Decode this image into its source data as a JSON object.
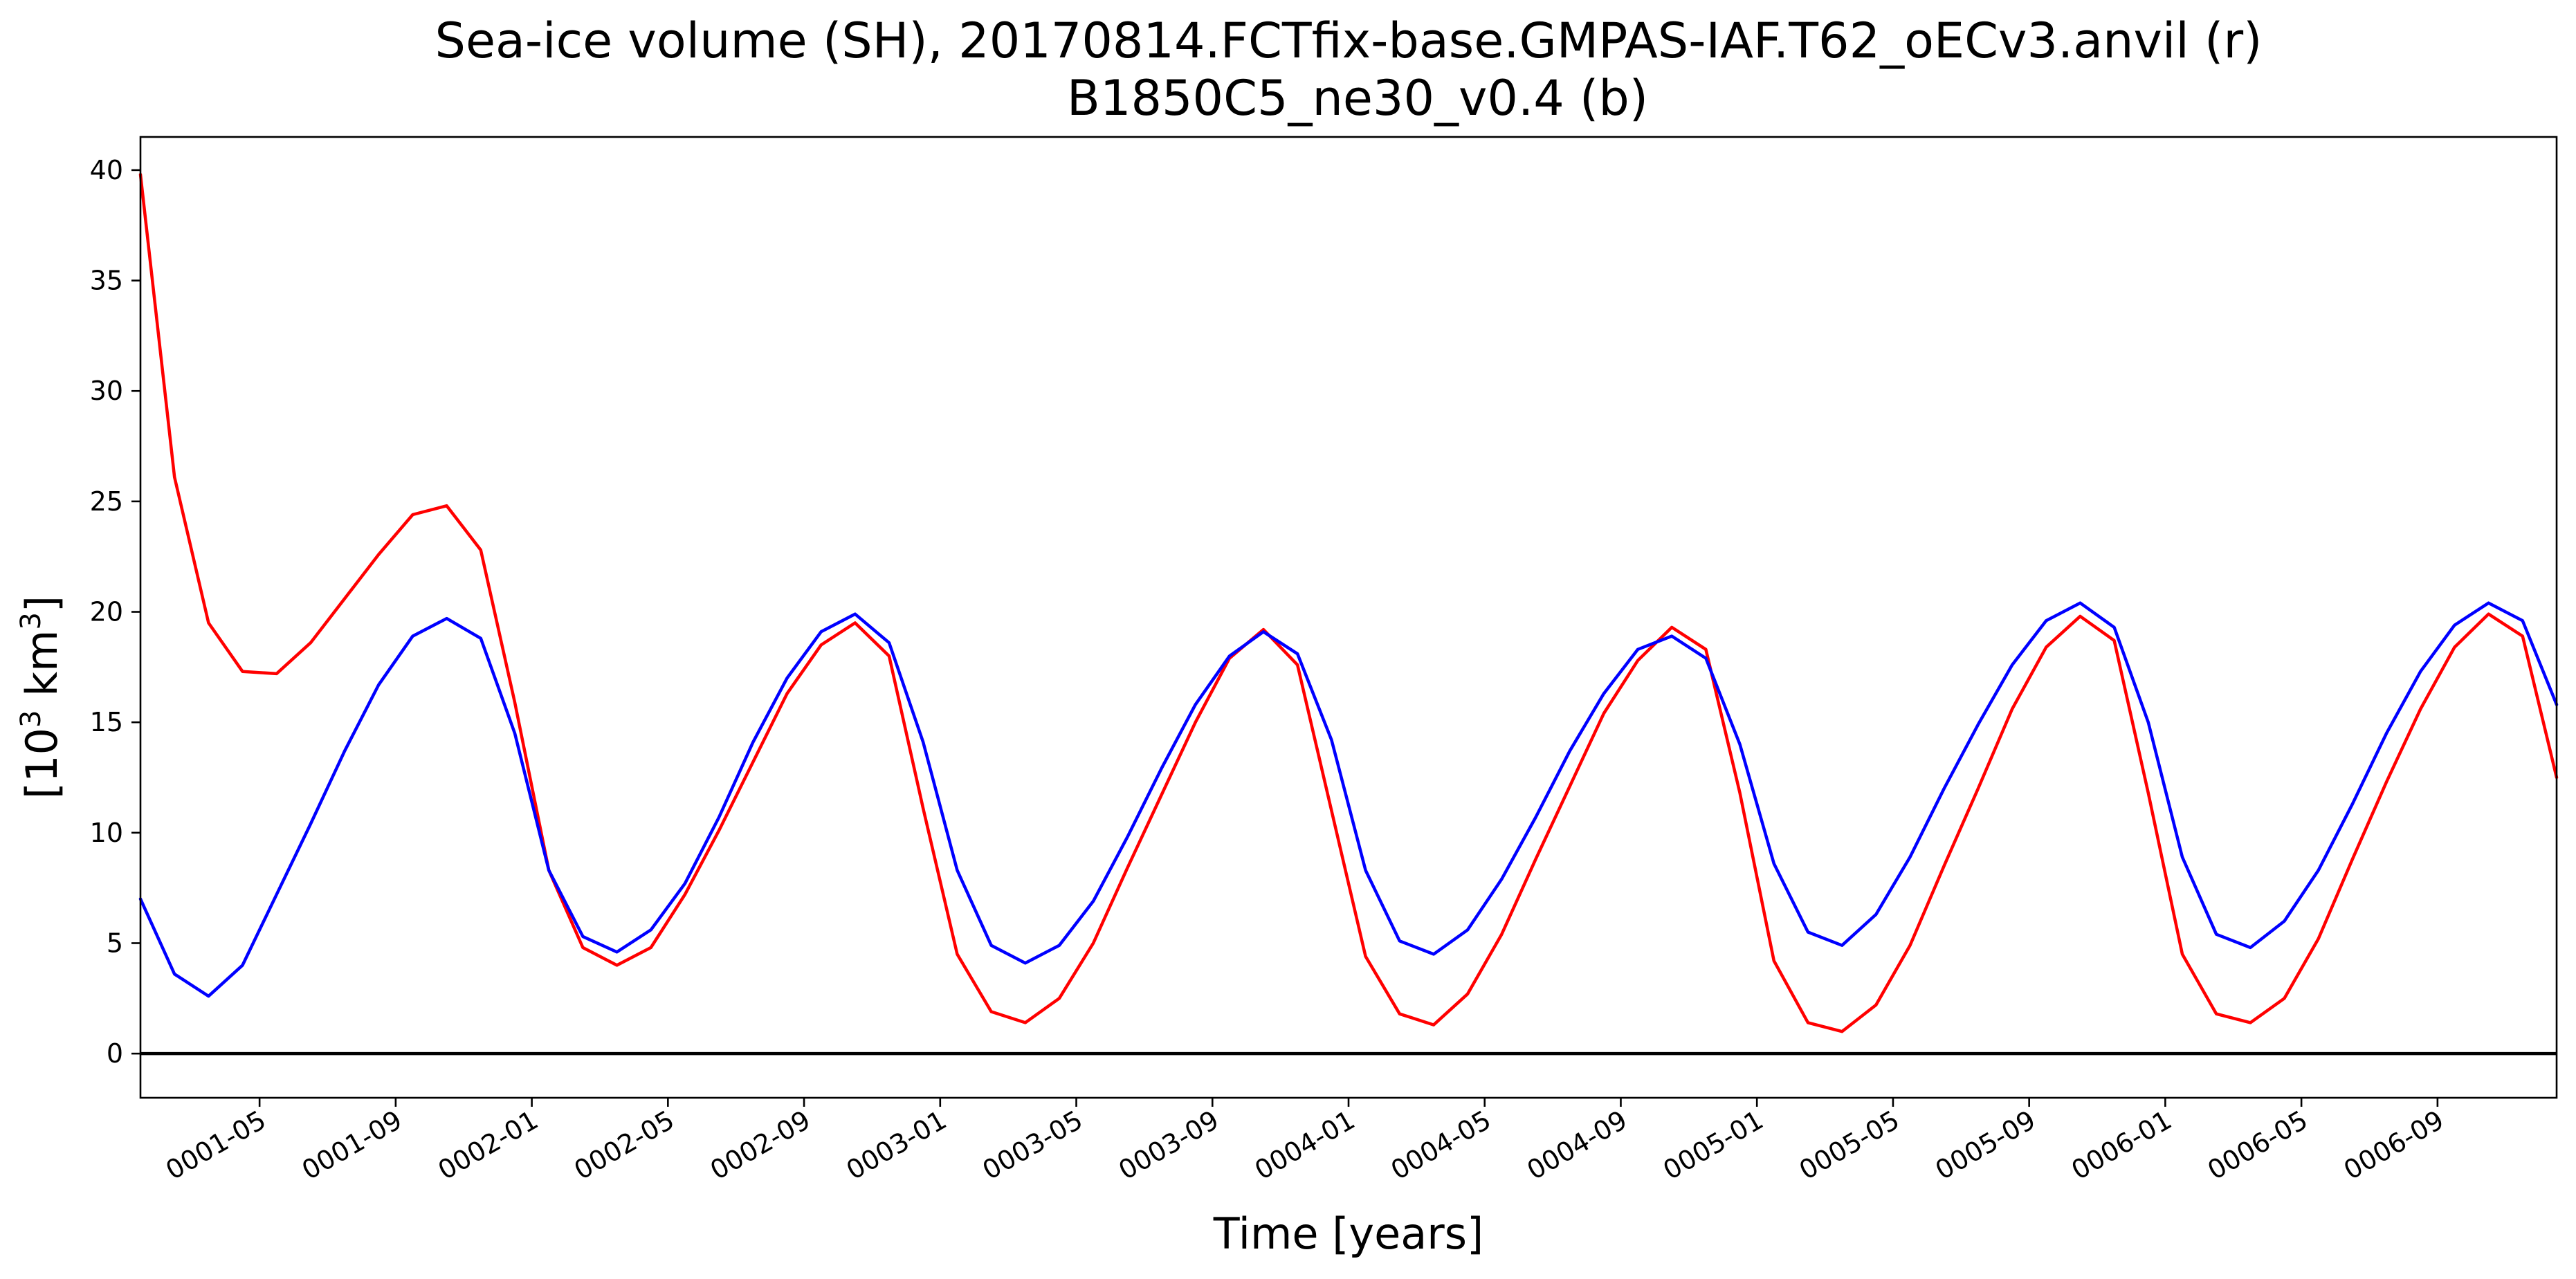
{
  "chart_data": {
    "type": "line",
    "title_line1": "Sea-ice volume (SH), 20170814.FCTfix-base.GMPAS-IAF.T62_oECv3.anvil (r)",
    "title_line2": "B1850C5_ne30_v0.4 (b)",
    "xlabel": "Time [years]",
    "ylabel_base": "[10",
    "ylabel_exp1": "3",
    "ylabel_mid": " km",
    "ylabel_exp2": "3",
    "ylabel_end": "]",
    "x_units": "months since 0001-01",
    "xlim": [
      0.5,
      71.5
    ],
    "ylim": [
      -2,
      41.5
    ],
    "yticks": [
      0,
      5,
      10,
      15,
      20,
      25,
      30,
      35,
      40
    ],
    "xticks": [
      {
        "x": 4,
        "label": "0001-05"
      },
      {
        "x": 8,
        "label": "0001-09"
      },
      {
        "x": 12,
        "label": "0002-01"
      },
      {
        "x": 16,
        "label": "0002-05"
      },
      {
        "x": 20,
        "label": "0002-09"
      },
      {
        "x": 24,
        "label": "0003-01"
      },
      {
        "x": 28,
        "label": "0003-05"
      },
      {
        "x": 32,
        "label": "0003-09"
      },
      {
        "x": 36,
        "label": "0004-01"
      },
      {
        "x": 40,
        "label": "0004-05"
      },
      {
        "x": 44,
        "label": "0004-09"
      },
      {
        "x": 48,
        "label": "0005-01"
      },
      {
        "x": 52,
        "label": "0005-05"
      },
      {
        "x": 56,
        "label": "0005-09"
      },
      {
        "x": 60,
        "label": "0006-01"
      },
      {
        "x": 64,
        "label": "0006-05"
      },
      {
        "x": 68,
        "label": "0006-09"
      }
    ],
    "grid": false,
    "zero_line": true,
    "series": [
      {
        "color": "#ff0000",
        "x_start": 0.5,
        "values": [
          39.8,
          26.1,
          19.5,
          17.3,
          17.2,
          18.6,
          20.6,
          22.6,
          24.4,
          24.8,
          22.8,
          15.9,
          8.3,
          4.8,
          4.0,
          4.8,
          7.2,
          10.1,
          13.2,
          16.3,
          18.5,
          19.5,
          18.0,
          11.1,
          4.5,
          1.9,
          1.4,
          2.5,
          5.0,
          8.4,
          11.7,
          15.0,
          17.9,
          19.2,
          17.6,
          11.0,
          4.4,
          1.8,
          1.3,
          2.7,
          5.4,
          8.8,
          12.1,
          15.4,
          17.8,
          19.3,
          18.3,
          11.8,
          4.2,
          1.4,
          1.0,
          2.2,
          4.9,
          8.5,
          12.0,
          15.6,
          18.4,
          19.8,
          18.7,
          11.8,
          4.5,
          1.8,
          1.4,
          2.5,
          5.2,
          8.8,
          12.3,
          15.6,
          18.4,
          19.9,
          18.9,
          12.5
        ]
      },
      {
        "color": "#0000ff",
        "x_start": 0.5,
        "values": [
          7.0,
          3.6,
          2.6,
          4.0,
          7.2,
          10.4,
          13.7,
          16.7,
          18.9,
          19.7,
          18.8,
          14.5,
          8.3,
          5.3,
          4.6,
          5.6,
          7.7,
          10.7,
          14.1,
          17.0,
          19.1,
          19.9,
          18.6,
          14.1,
          8.3,
          4.9,
          4.1,
          4.9,
          6.9,
          9.8,
          12.9,
          15.8,
          18.0,
          19.1,
          18.1,
          14.2,
          8.3,
          5.1,
          4.5,
          5.6,
          7.9,
          10.7,
          13.7,
          16.3,
          18.3,
          18.9,
          17.9,
          14.0,
          8.6,
          5.5,
          4.9,
          6.3,
          8.9,
          12.0,
          14.9,
          17.6,
          19.6,
          20.4,
          19.3,
          15.0,
          8.9,
          5.4,
          4.8,
          6.0,
          8.3,
          11.3,
          14.5,
          17.3,
          19.4,
          20.4,
          19.6,
          15.8
        ]
      }
    ]
  }
}
